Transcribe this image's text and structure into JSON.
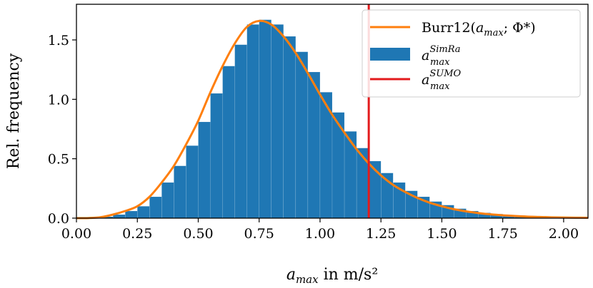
{
  "chart_data": {
    "type": "bar",
    "xlabel": {
      "symbol": "a",
      "subscript": "max",
      "suffix": " in m/s²"
    },
    "ylabel": "Rel. frequency",
    "xlim": [
      0.0,
      2.1
    ],
    "ylim": [
      0.0,
      1.8
    ],
    "xticks": [
      "0.00",
      "0.25",
      "0.50",
      "0.75",
      "1.00",
      "1.25",
      "1.50",
      "1.75",
      "2.00"
    ],
    "yticks": [
      "0.0",
      "0.5",
      "1.0",
      "1.5"
    ],
    "grid": false,
    "legend_position": "top-right",
    "histogram": {
      "bin_width": 0.05,
      "bin_starts": [
        0.05,
        0.1,
        0.15,
        0.2,
        0.25,
        0.3,
        0.35,
        0.4,
        0.45,
        0.5,
        0.55,
        0.6,
        0.65,
        0.7,
        0.75,
        0.8,
        0.85,
        0.9,
        0.95,
        1.0,
        1.05,
        1.1,
        1.15,
        1.2,
        1.25,
        1.3,
        1.35,
        1.4,
        1.45,
        1.5,
        1.55,
        1.6,
        1.65,
        1.7,
        1.75,
        1.8,
        1.85,
        1.9,
        1.95,
        2.0,
        2.05
      ],
      "values": [
        0.003,
        0.012,
        0.03,
        0.06,
        0.1,
        0.18,
        0.3,
        0.44,
        0.61,
        0.81,
        1.05,
        1.28,
        1.46,
        1.63,
        1.67,
        1.63,
        1.53,
        1.4,
        1.23,
        1.06,
        0.89,
        0.73,
        0.59,
        0.48,
        0.38,
        0.3,
        0.23,
        0.18,
        0.14,
        0.11,
        0.08,
        0.06,
        0.045,
        0.035,
        0.025,
        0.018,
        0.014,
        0.01,
        0.007,
        0.005,
        0.004
      ],
      "color": "#1f77b4"
    },
    "fit_curve": {
      "x": [
        0.0,
        0.05,
        0.1,
        0.15,
        0.2,
        0.25,
        0.3,
        0.35,
        0.4,
        0.45,
        0.5,
        0.55,
        0.6,
        0.65,
        0.7,
        0.75,
        0.8,
        0.85,
        0.9,
        0.95,
        1.0,
        1.05,
        1.1,
        1.15,
        1.2,
        1.25,
        1.3,
        1.35,
        1.4,
        1.45,
        1.5,
        1.55,
        1.6,
        1.65,
        1.7,
        1.75,
        1.8,
        1.85,
        1.9,
        1.95,
        2.0,
        2.05,
        2.1
      ],
      "y": [
        0.0,
        0.001,
        0.008,
        0.03,
        0.06,
        0.1,
        0.18,
        0.3,
        0.44,
        0.62,
        0.82,
        1.06,
        1.28,
        1.47,
        1.61,
        1.66,
        1.63,
        1.53,
        1.39,
        1.22,
        1.04,
        0.87,
        0.72,
        0.58,
        0.46,
        0.36,
        0.28,
        0.22,
        0.17,
        0.13,
        0.1,
        0.075,
        0.057,
        0.043,
        0.032,
        0.024,
        0.018,
        0.013,
        0.01,
        0.007,
        0.005,
        0.004,
        0.003
      ],
      "color": "#ff7f0e"
    },
    "vline": {
      "x": 1.2,
      "color": "#e31a1c"
    },
    "legend": [
      {
        "label_text": "Burr12(",
        "math": "a",
        "sub": "max",
        "after": "; Φ*)",
        "color": "#ff7f0e",
        "kind": "line"
      },
      {
        "math": "a",
        "sup": "SimRa",
        "sub": "max",
        "color": "#1f77b4",
        "kind": "patch"
      },
      {
        "math": "a",
        "sup": "SUMO",
        "sub": "max",
        "color": "#e31a1c",
        "kind": "line"
      }
    ]
  }
}
